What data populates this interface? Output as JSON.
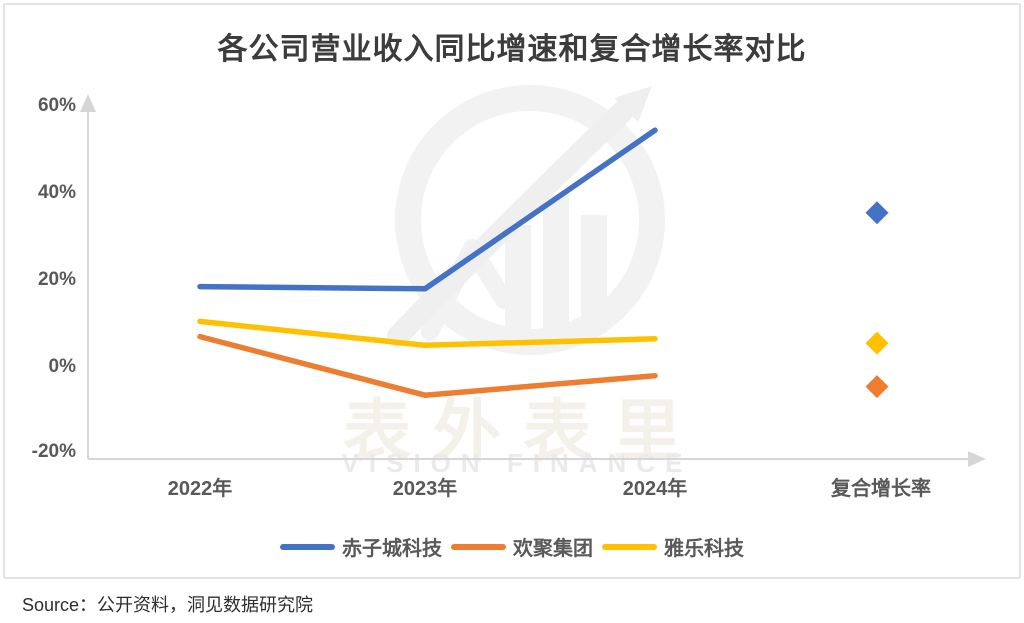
{
  "title": "各公司营业收入同比增速和复合增长率对比",
  "source_note": "Source：公开资料，洞见数据研究院",
  "watermark": {
    "cn": "表外表里",
    "en": "VISION FINANCE"
  },
  "axis": {
    "y_ticks": [
      "60%",
      "40%",
      "20%",
      "0%",
      "-20%"
    ],
    "x_ticks": [
      "2022年",
      "2023年",
      "2024年",
      "复合增长率"
    ],
    "axis_color": "#d6d6d6",
    "label_color": "#595959"
  },
  "legend": [
    {
      "label": "赤子城科技",
      "color": "#4472c4"
    },
    {
      "label": "欢聚集团",
      "color": "#ed7d31"
    },
    {
      "label": "雅乐科技",
      "color": "#ffc000"
    }
  ],
  "chart_data": {
    "type": "line",
    "title": "各公司营业收入同比增速和复合增长率对比",
    "categories": [
      "2022年",
      "2023年",
      "2024年"
    ],
    "extra_category": "复合增长率",
    "unit": "%",
    "ylim": [
      -20,
      60
    ],
    "y_tick_step": 20,
    "legend_position": "bottom",
    "grid": false,
    "series": [
      {
        "name": "赤子城科技",
        "color": "#4472c4",
        "values": [
          18.5,
          18,
          54.5
        ],
        "cagr": 35.5
      },
      {
        "name": "欢聚集团",
        "color": "#ed7d31",
        "values": [
          7,
          -6.5,
          -2
        ],
        "cagr": -4.5
      },
      {
        "name": "雅乐科技",
        "color": "#ffc000",
        "values": [
          10.5,
          5,
          6.5
        ],
        "cagr": 5.5
      }
    ]
  }
}
